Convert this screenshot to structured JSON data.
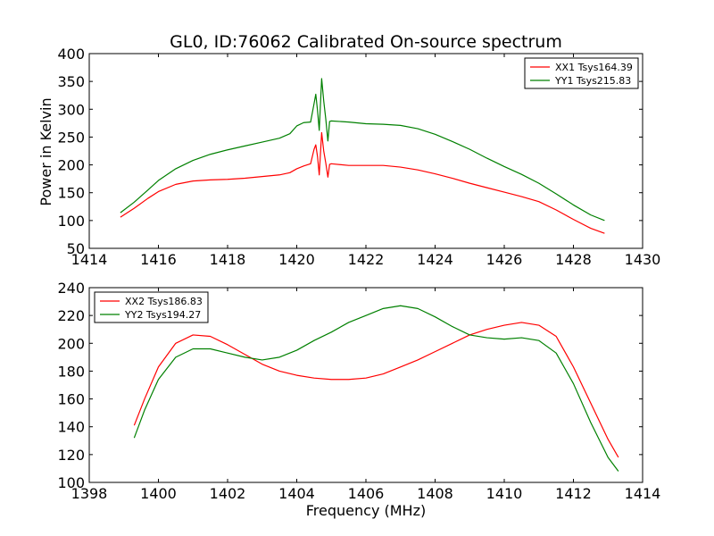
{
  "chart_data": [
    {
      "type": "line",
      "title": "GL0, ID:76062 Calibrated On-source spectrum",
      "xlabel": "",
      "ylabel": "Power in Kelvin",
      "xlim": [
        1414,
        1430
      ],
      "ylim": [
        50,
        400
      ],
      "xticks": [
        "1414",
        "1416",
        "1418",
        "1420",
        "1422",
        "1424",
        "1426",
        "1428",
        "1430"
      ],
      "yticks": [
        "50",
        "100",
        "150",
        "200",
        "250",
        "300",
        "350",
        "400"
      ],
      "legend_position": "top-right",
      "series": [
        {
          "name": "XX1 Tsys164.39",
          "color": "#ff0000",
          "x": [
            1414.9,
            1415.3,
            1415.7,
            1416.0,
            1416.5,
            1417.0,
            1417.5,
            1418.0,
            1418.5,
            1419.0,
            1419.5,
            1419.8,
            1420.0,
            1420.2,
            1420.4,
            1420.5,
            1420.55,
            1420.6,
            1420.65,
            1420.72,
            1420.78,
            1420.84,
            1420.9,
            1420.95,
            1421.0,
            1421.5,
            1422.0,
            1422.5,
            1423.0,
            1423.5,
            1424.0,
            1424.5,
            1425.0,
            1425.5,
            1426.0,
            1426.5,
            1427.0,
            1427.5,
            1428.0,
            1428.5,
            1428.9
          ],
          "y": [
            106,
            122,
            140,
            152,
            165,
            171,
            173,
            174,
            176,
            179,
            182,
            186,
            193,
            198,
            202,
            228,
            236,
            215,
            182,
            258,
            225,
            203,
            178,
            201,
            202,
            199,
            199,
            199,
            196,
            191,
            184,
            176,
            167,
            159,
            151,
            143,
            134,
            119,
            102,
            86,
            77
          ]
        },
        {
          "name": "YY1 Tsys215.83",
          "color": "#008000",
          "x": [
            1414.9,
            1415.3,
            1415.7,
            1416.0,
            1416.5,
            1417.0,
            1417.5,
            1418.0,
            1418.5,
            1419.0,
            1419.5,
            1419.8,
            1420.0,
            1420.2,
            1420.4,
            1420.5,
            1420.55,
            1420.6,
            1420.65,
            1420.72,
            1420.78,
            1420.84,
            1420.9,
            1420.95,
            1421.0,
            1421.5,
            1422.0,
            1422.5,
            1423.0,
            1423.5,
            1424.0,
            1424.5,
            1425.0,
            1425.5,
            1426.0,
            1426.5,
            1427.0,
            1427.5,
            1428.0,
            1428.5,
            1428.9
          ],
          "y": [
            114,
            133,
            155,
            172,
            193,
            208,
            219,
            227,
            234,
            241,
            248,
            256,
            270,
            276,
            277,
            310,
            327,
            298,
            262,
            355,
            315,
            282,
            243,
            278,
            279,
            277,
            274,
            273,
            271,
            265,
            255,
            242,
            228,
            212,
            197,
            183,
            167,
            148,
            128,
            110,
            100
          ]
        }
      ]
    },
    {
      "type": "line",
      "title": "",
      "xlabel": "Frequency (MHz)",
      "ylabel": "",
      "xlim": [
        1398,
        1414
      ],
      "ylim": [
        100,
        240
      ],
      "xticks": [
        "1398",
        "1400",
        "1402",
        "1404",
        "1406",
        "1408",
        "1410",
        "1412",
        "1414"
      ],
      "yticks": [
        "100",
        "120",
        "140",
        "160",
        "180",
        "200",
        "220",
        "240"
      ],
      "legend_position": "top-left",
      "series": [
        {
          "name": "XX2 Tsys186.83",
          "color": "#ff0000",
          "x": [
            1399.3,
            1399.6,
            1400.0,
            1400.5,
            1401.0,
            1401.5,
            1402.0,
            1402.5,
            1403.0,
            1403.5,
            1404.0,
            1404.5,
            1405.0,
            1405.5,
            1406.0,
            1406.5,
            1407.0,
            1407.5,
            1408.0,
            1408.5,
            1409.0,
            1409.5,
            1410.0,
            1410.5,
            1411.0,
            1411.5,
            1412.0,
            1412.5,
            1413.0,
            1413.3
          ],
          "y": [
            141,
            160,
            183,
            200,
            206,
            205,
            199,
            192,
            185,
            180,
            177,
            175,
            174,
            174,
            175,
            178,
            183,
            188,
            194,
            200,
            206,
            210,
            213,
            215,
            213,
            205,
            183,
            157,
            131,
            118
          ]
        },
        {
          "name": "YY2 Tsys194.27",
          "color": "#008000",
          "x": [
            1399.3,
            1399.6,
            1400.0,
            1400.5,
            1401.0,
            1401.5,
            1402.0,
            1402.5,
            1403.0,
            1403.5,
            1404.0,
            1404.5,
            1405.0,
            1405.5,
            1406.0,
            1406.5,
            1407.0,
            1407.5,
            1408.0,
            1408.5,
            1409.0,
            1409.5,
            1410.0,
            1410.5,
            1411.0,
            1411.5,
            1412.0,
            1412.5,
            1413.0,
            1413.3
          ],
          "y": [
            132,
            152,
            174,
            190,
            196,
            196,
            193,
            190,
            188,
            190,
            195,
            202,
            208,
            215,
            220,
            225,
            227,
            225,
            219,
            212,
            206,
            204,
            203,
            204,
            202,
            193,
            171,
            143,
            118,
            108
          ]
        }
      ]
    }
  ]
}
